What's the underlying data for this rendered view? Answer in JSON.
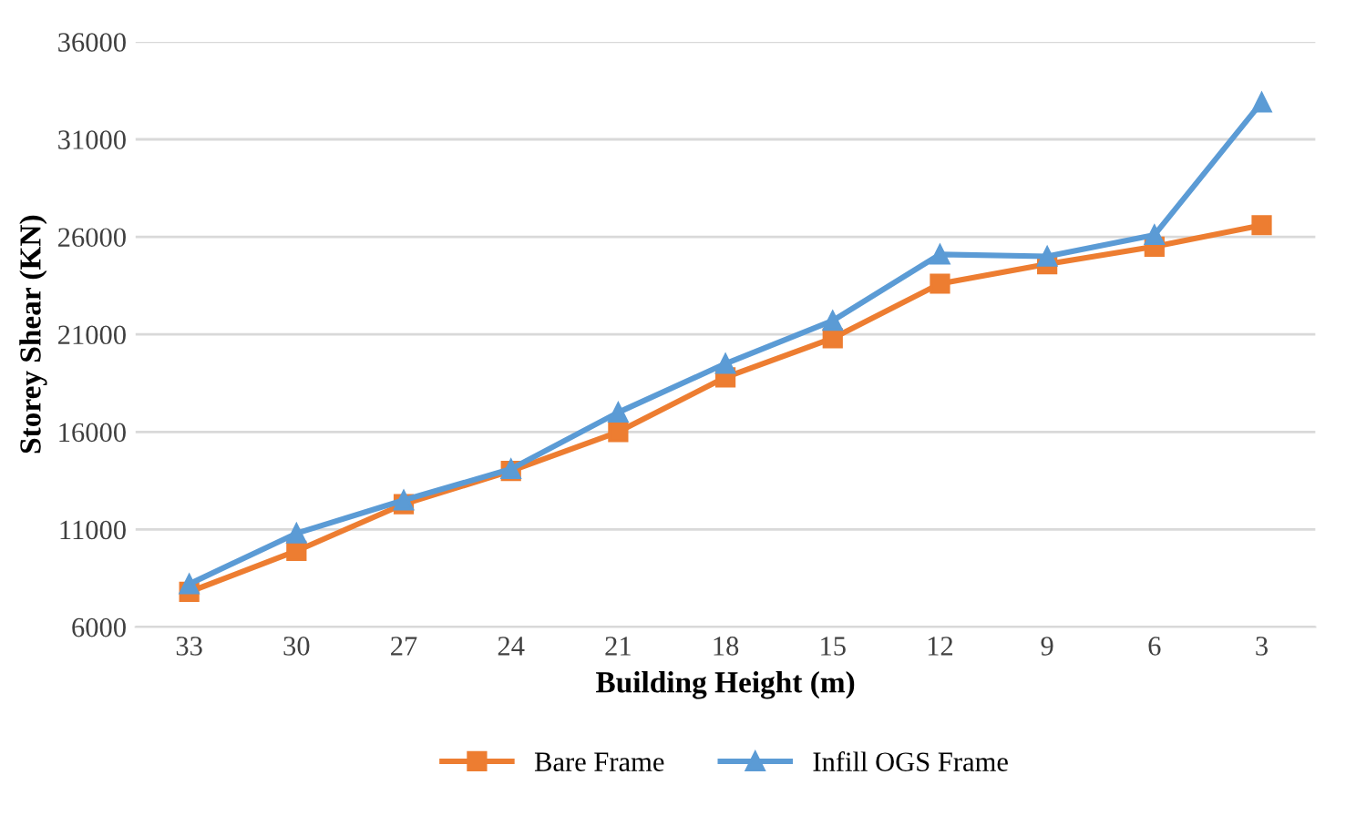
{
  "chart_data": {
    "type": "line",
    "xlabel": "Building Height (m)",
    "ylabel": "Storey Shear (KN)",
    "categories": [
      "33",
      "30",
      "27",
      "24",
      "21",
      "18",
      "15",
      "12",
      "9",
      "6",
      "3"
    ],
    "series": [
      {
        "name": "Bare Frame",
        "color": "#ed7d31",
        "marker": "square",
        "values": [
          7800,
          9900,
          12300,
          14000,
          16000,
          18800,
          20800,
          23600,
          24600,
          25500,
          26600
        ]
      },
      {
        "name": "Infill OGS Frame",
        "color": "#5b9bd5",
        "marker": "triangle",
        "values": [
          8200,
          10800,
          12500,
          14100,
          17000,
          19500,
          21700,
          25100,
          25000,
          26100,
          32900
        ]
      }
    ],
    "ylim": [
      6000,
      36000
    ],
    "yticks": [
      6000,
      11000,
      16000,
      21000,
      26000,
      31000,
      36000
    ],
    "grid": "y",
    "legend": "bottom",
    "line_style": "solid"
  }
}
